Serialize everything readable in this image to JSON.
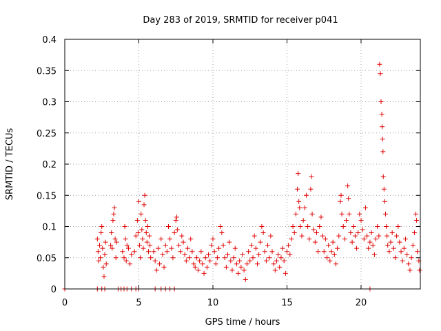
{
  "chart_data": {
    "type": "scatter",
    "title": "Day 283 of 2019, SRMTID for receiver p041",
    "xlabel": "GPS time / hours",
    "ylabel": "SRMTID / TECUs",
    "xlim": [
      0,
      24
    ],
    "ylim": [
      0,
      0.4
    ],
    "xticks": [
      0,
      5,
      10,
      15,
      20
    ],
    "xtick_labels": [
      "0",
      "5",
      "10",
      "15",
      "20"
    ],
    "yticks": [
      0,
      0.05,
      0.1,
      0.15,
      0.2,
      0.25,
      0.3,
      0.35,
      0.4
    ],
    "ytick_labels": [
      "0",
      "0.05",
      "0.1",
      "0.15",
      "0.2",
      "0.25",
      "0.3",
      "0.35",
      "0.4"
    ],
    "grid": true,
    "marker": "plus",
    "color": "#e00000",
    "series": [
      {
        "name": "SRMTID",
        "points": [
          [
            0.0,
            0.0
          ],
          [
            2.2,
            0.0
          ],
          [
            2.5,
            0.0
          ],
          [
            2.7,
            0.0
          ],
          [
            3.6,
            0.0
          ],
          [
            3.8,
            0.0
          ],
          [
            4.0,
            0.0
          ],
          [
            4.2,
            0.0
          ],
          [
            4.5,
            0.0
          ],
          [
            4.8,
            0.0
          ],
          [
            5.0,
            0.0
          ],
          [
            6.1,
            0.0
          ],
          [
            6.5,
            0.0
          ],
          [
            6.8,
            0.0
          ],
          [
            7.1,
            0.0
          ],
          [
            7.4,
            0.0
          ],
          [
            20.6,
            0.0
          ],
          [
            2.2,
            0.08
          ],
          [
            2.25,
            0.06
          ],
          [
            2.3,
            0.045
          ],
          [
            2.35,
            0.07
          ],
          [
            2.4,
            0.05
          ],
          [
            2.45,
            0.09
          ],
          [
            2.5,
            0.1
          ],
          [
            2.55,
            0.065
          ],
          [
            2.6,
            0.035
          ],
          [
            2.65,
            0.02
          ],
          [
            2.7,
            0.055
          ],
          [
            2.75,
            0.075
          ],
          [
            2.8,
            0.04
          ],
          [
            3.1,
            0.07
          ],
          [
            3.15,
            0.09
          ],
          [
            3.2,
            0.065
          ],
          [
            3.25,
            0.11
          ],
          [
            3.3,
            0.12
          ],
          [
            3.35,
            0.13
          ],
          [
            3.4,
            0.08
          ],
          [
            3.45,
            0.05
          ],
          [
            3.5,
            0.075
          ],
          [
            3.9,
            0.06
          ],
          [
            4.0,
            0.05
          ],
          [
            4.05,
            0.1
          ],
          [
            4.1,
            0.08
          ],
          [
            4.15,
            0.045
          ],
          [
            4.2,
            0.07
          ],
          [
            4.3,
            0.065
          ],
          [
            4.4,
            0.04
          ],
          [
            4.5,
            0.055
          ],
          [
            4.7,
            0.06
          ],
          [
            4.8,
            0.085
          ],
          [
            4.9,
            0.11
          ],
          [
            4.95,
            0.09
          ],
          [
            5.0,
            0.14
          ],
          [
            5.05,
            0.07
          ],
          [
            5.1,
            0.05
          ],
          [
            5.15,
            0.12
          ],
          [
            5.2,
            0.095
          ],
          [
            5.25,
            0.08
          ],
          [
            5.3,
            0.065
          ],
          [
            5.35,
            0.135
          ],
          [
            5.4,
            0.15
          ],
          [
            5.45,
            0.11
          ],
          [
            5.5,
            0.09
          ],
          [
            5.55,
            0.075
          ],
          [
            5.6,
            0.1
          ],
          [
            5.65,
            0.06
          ],
          [
            5.7,
            0.085
          ],
          [
            5.75,
            0.07
          ],
          [
            5.8,
            0.05
          ],
          [
            6.0,
            0.06
          ],
          [
            6.1,
            0.045
          ],
          [
            6.2,
            0.03
          ],
          [
            6.3,
            0.065
          ],
          [
            6.4,
            0.04
          ],
          [
            6.5,
            0.08
          ],
          [
            6.6,
            0.055
          ],
          [
            6.7,
            0.035
          ],
          [
            6.8,
            0.07
          ],
          [
            6.9,
            0.06
          ],
          [
            7.0,
            0.1
          ],
          [
            7.1,
            0.08
          ],
          [
            7.2,
            0.065
          ],
          [
            7.3,
            0.05
          ],
          [
            7.4,
            0.09
          ],
          [
            7.5,
            0.11
          ],
          [
            7.55,
            0.115
          ],
          [
            7.6,
            0.095
          ],
          [
            7.7,
            0.07
          ],
          [
            7.8,
            0.06
          ],
          [
            7.9,
            0.085
          ],
          [
            8.0,
            0.075
          ],
          [
            8.1,
            0.055
          ],
          [
            8.2,
            0.045
          ],
          [
            8.3,
            0.065
          ],
          [
            8.4,
            0.05
          ],
          [
            8.5,
            0.08
          ],
          [
            8.6,
            0.06
          ],
          [
            8.7,
            0.04
          ],
          [
            8.8,
            0.035
          ],
          [
            8.9,
            0.05
          ],
          [
            9.0,
            0.03
          ],
          [
            9.1,
            0.045
          ],
          [
            9.2,
            0.06
          ],
          [
            9.3,
            0.04
          ],
          [
            9.4,
            0.025
          ],
          [
            9.5,
            0.05
          ],
          [
            9.6,
            0.035
          ],
          [
            9.7,
            0.055
          ],
          [
            9.8,
            0.045
          ],
          [
            9.9,
            0.07
          ],
          [
            10.0,
            0.08
          ],
          [
            10.1,
            0.06
          ],
          [
            10.2,
            0.04
          ],
          [
            10.3,
            0.05
          ],
          [
            10.4,
            0.065
          ],
          [
            10.5,
            0.1
          ],
          [
            10.6,
            0.09
          ],
          [
            10.7,
            0.07
          ],
          [
            10.8,
            0.05
          ],
          [
            10.9,
            0.035
          ],
          [
            11.0,
            0.055
          ],
          [
            11.1,
            0.075
          ],
          [
            11.2,
            0.045
          ],
          [
            11.3,
            0.03
          ],
          [
            11.4,
            0.05
          ],
          [
            11.5,
            0.065
          ],
          [
            11.6,
            0.04
          ],
          [
            11.7,
            0.025
          ],
          [
            11.8,
            0.045
          ],
          [
            11.9,
            0.035
          ],
          [
            12.0,
            0.055
          ],
          [
            12.1,
            0.03
          ],
          [
            12.2,
            0.015
          ],
          [
            12.3,
            0.04
          ],
          [
            12.4,
            0.06
          ],
          [
            12.5,
            0.045
          ],
          [
            12.6,
            0.07
          ],
          [
            12.7,
            0.05
          ],
          [
            12.8,
            0.085
          ],
          [
            12.9,
            0.065
          ],
          [
            13.0,
            0.04
          ],
          [
            13.1,
            0.055
          ],
          [
            13.2,
            0.075
          ],
          [
            13.3,
            0.1
          ],
          [
            13.4,
            0.09
          ],
          [
            13.5,
            0.06
          ],
          [
            13.6,
            0.045
          ],
          [
            13.7,
            0.07
          ],
          [
            13.8,
            0.05
          ],
          [
            13.9,
            0.085
          ],
          [
            14.0,
            0.06
          ],
          [
            14.1,
            0.04
          ],
          [
            14.2,
            0.03
          ],
          [
            14.3,
            0.045
          ],
          [
            14.4,
            0.055
          ],
          [
            14.5,
            0.035
          ],
          [
            14.6,
            0.05
          ],
          [
            14.7,
            0.065
          ],
          [
            14.8,
            0.045
          ],
          [
            14.9,
            0.025
          ],
          [
            15.0,
            0.06
          ],
          [
            15.1,
            0.07
          ],
          [
            15.2,
            0.055
          ],
          [
            15.3,
            0.08
          ],
          [
            15.4,
            0.1
          ],
          [
            15.5,
            0.09
          ],
          [
            15.6,
            0.12
          ],
          [
            15.7,
            0.16
          ],
          [
            15.75,
            0.185
          ],
          [
            15.8,
            0.14
          ],
          [
            15.85,
            0.13
          ],
          [
            15.9,
            0.1
          ],
          [
            16.0,
            0.085
          ],
          [
            16.1,
            0.11
          ],
          [
            16.2,
            0.13
          ],
          [
            16.3,
            0.15
          ],
          [
            16.4,
            0.1
          ],
          [
            16.5,
            0.08
          ],
          [
            16.6,
            0.16
          ],
          [
            16.65,
            0.18
          ],
          [
            16.7,
            0.12
          ],
          [
            16.8,
            0.095
          ],
          [
            16.9,
            0.075
          ],
          [
            17.0,
            0.09
          ],
          [
            17.1,
            0.06
          ],
          [
            17.2,
            0.1
          ],
          [
            17.3,
            0.115
          ],
          [
            17.4,
            0.085
          ],
          [
            17.5,
            0.06
          ],
          [
            17.6,
            0.08
          ],
          [
            17.7,
            0.05
          ],
          [
            17.8,
            0.07
          ],
          [
            17.9,
            0.045
          ],
          [
            18.0,
            0.06
          ],
          [
            18.1,
            0.075
          ],
          [
            18.2,
            0.055
          ],
          [
            18.3,
            0.04
          ],
          [
            18.4,
            0.065
          ],
          [
            18.5,
            0.085
          ],
          [
            18.6,
            0.14
          ],
          [
            18.65,
            0.15
          ],
          [
            18.7,
            0.12
          ],
          [
            18.8,
            0.1
          ],
          [
            18.9,
            0.08
          ],
          [
            19.0,
            0.11
          ],
          [
            19.1,
            0.165
          ],
          [
            19.15,
            0.145
          ],
          [
            19.2,
            0.12
          ],
          [
            19.3,
            0.09
          ],
          [
            19.4,
            0.075
          ],
          [
            19.5,
            0.1
          ],
          [
            19.6,
            0.085
          ],
          [
            19.7,
            0.065
          ],
          [
            19.8,
            0.09
          ],
          [
            19.9,
            0.12
          ],
          [
            20.0,
            0.11
          ],
          [
            20.1,
            0.095
          ],
          [
            20.2,
            0.08
          ],
          [
            20.3,
            0.13
          ],
          [
            20.4,
            0.085
          ],
          [
            20.5,
            0.065
          ],
          [
            20.6,
            0.075
          ],
          [
            20.7,
            0.09
          ],
          [
            20.8,
            0.07
          ],
          [
            20.9,
            0.055
          ],
          [
            21.0,
            0.08
          ],
          [
            21.1,
            0.1
          ],
          [
            21.2,
            0.085
          ],
          [
            21.25,
            0.36
          ],
          [
            21.3,
            0.345
          ],
          [
            21.35,
            0.3
          ],
          [
            21.4,
            0.28
          ],
          [
            21.42,
            0.26
          ],
          [
            21.45,
            0.24
          ],
          [
            21.48,
            0.22
          ],
          [
            21.5,
            0.18
          ],
          [
            21.55,
            0.16
          ],
          [
            21.6,
            0.14
          ],
          [
            21.65,
            0.12
          ],
          [
            21.7,
            0.1
          ],
          [
            21.75,
            0.085
          ],
          [
            21.8,
            0.07
          ],
          [
            21.9,
            0.06
          ],
          [
            22.0,
            0.075
          ],
          [
            22.1,
            0.09
          ],
          [
            22.2,
            0.065
          ],
          [
            22.3,
            0.05
          ],
          [
            22.4,
            0.085
          ],
          [
            22.5,
            0.1
          ],
          [
            22.6,
            0.075
          ],
          [
            22.7,
            0.06
          ],
          [
            22.8,
            0.045
          ],
          [
            22.9,
            0.065
          ],
          [
            23.0,
            0.08
          ],
          [
            23.1,
            0.055
          ],
          [
            23.2,
            0.04
          ],
          [
            23.3,
            0.03
          ],
          [
            23.4,
            0.05
          ],
          [
            23.5,
            0.07
          ],
          [
            23.6,
            0.09
          ],
          [
            23.7,
            0.12
          ],
          [
            23.75,
            0.11
          ],
          [
            23.8,
            0.06
          ],
          [
            23.9,
            0.045
          ],
          [
            23.95,
            0.03
          ]
        ]
      }
    ]
  }
}
